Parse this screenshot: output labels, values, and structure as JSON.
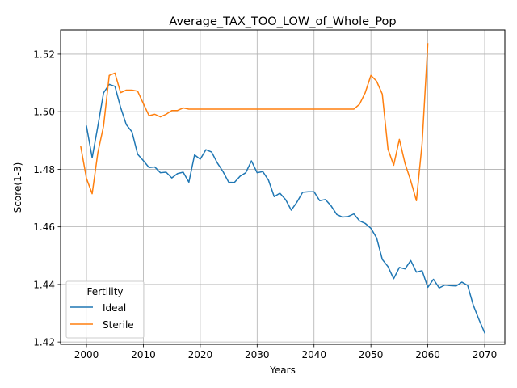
{
  "chart_data": {
    "type": "line",
    "title": "Average_TAX_TOO_LOW_of_Whole_Pop",
    "xlabel": "Years",
    "ylabel": "Score(1-3)",
    "xlim": [
      1995.45,
      2073.55
    ],
    "ylim": [
      1.4192,
      1.5284
    ],
    "xticks": [
      2000,
      2010,
      2020,
      2030,
      2040,
      2050,
      2060,
      2070
    ],
    "yticks": [
      1.42,
      1.44,
      1.46,
      1.48,
      1.5,
      1.52
    ],
    "grid": true,
    "legend": {
      "title": "Fertility",
      "position": "lower-left"
    },
    "series": [
      {
        "name": "Ideal",
        "color": "#1f77b4",
        "x": [
          2000,
          2001,
          2002,
          2003,
          2004,
          2005,
          2006,
          2007,
          2008,
          2009,
          2010,
          2011,
          2012,
          2013,
          2014,
          2015,
          2016,
          2017,
          2018,
          2019,
          2020,
          2021,
          2022,
          2023,
          2024,
          2025,
          2026,
          2027,
          2028,
          2029,
          2030,
          2031,
          2032,
          2033,
          2034,
          2035,
          2036,
          2037,
          2038,
          2039,
          2040,
          2041,
          2042,
          2043,
          2044,
          2045,
          2046,
          2047,
          2048,
          2049,
          2050,
          2051,
          2052,
          2053,
          2054,
          2055,
          2056,
          2057,
          2058,
          2059,
          2060,
          2061,
          2062,
          2063,
          2064,
          2065,
          2066,
          2067,
          2068,
          2069,
          2070
        ],
        "y": [
          1.495,
          1.484,
          1.495,
          1.5065,
          1.5095,
          1.5088,
          1.5015,
          1.4955,
          1.493,
          1.4852,
          1.483,
          1.4806,
          1.4808,
          1.4788,
          1.479,
          1.477,
          1.4785,
          1.479,
          1.4755,
          1.485,
          1.4835,
          1.4868,
          1.486,
          1.4822,
          1.4792,
          1.4755,
          1.4754,
          1.4776,
          1.4788,
          1.4829,
          1.4788,
          1.4792,
          1.4762,
          1.4705,
          1.4717,
          1.4695,
          1.4658,
          1.4686,
          1.472,
          1.4722,
          1.4722,
          1.4691,
          1.4695,
          1.4673,
          1.4643,
          1.4634,
          1.4636,
          1.4645,
          1.4621,
          1.4612,
          1.4595,
          1.4562,
          1.4487,
          1.4462,
          1.442,
          1.4459,
          1.4454,
          1.4483,
          1.4443,
          1.4448,
          1.439,
          1.4418,
          1.4388,
          1.4398,
          1.4396,
          1.4395,
          1.4408,
          1.4397,
          1.4328,
          1.4278,
          1.4232
        ]
      },
      {
        "name": "Sterile",
        "color": "#ff7f0e",
        "x": [
          1999,
          2000,
          2001,
          2002,
          2003,
          2004,
          2005,
          2006,
          2007,
          2008,
          2009,
          2010,
          2011,
          2012,
          2013,
          2014,
          2015,
          2016,
          2017,
          2018,
          2020,
          2025,
          2030,
          2035,
          2040,
          2045,
          2047,
          2048,
          2049,
          2050,
          2051,
          2052,
          2053,
          2054,
          2055,
          2056,
          2057,
          2058,
          2059,
          2060
        ],
        "y": [
          1.4878,
          1.4768,
          1.4715,
          1.4858,
          1.495,
          1.5126,
          1.5134,
          1.5066,
          1.5075,
          1.5075,
          1.5071,
          1.5028,
          1.4986,
          1.4991,
          1.4982,
          1.4991,
          1.5004,
          1.5004,
          1.5013,
          1.5009,
          1.5009,
          1.5009,
          1.5009,
          1.5009,
          1.5009,
          1.5009,
          1.5009,
          1.5026,
          1.5066,
          1.5126,
          1.5106,
          1.5061,
          1.487,
          1.4814,
          1.4904,
          1.482,
          1.476,
          1.4691,
          1.489,
          1.5236
        ]
      }
    ]
  }
}
